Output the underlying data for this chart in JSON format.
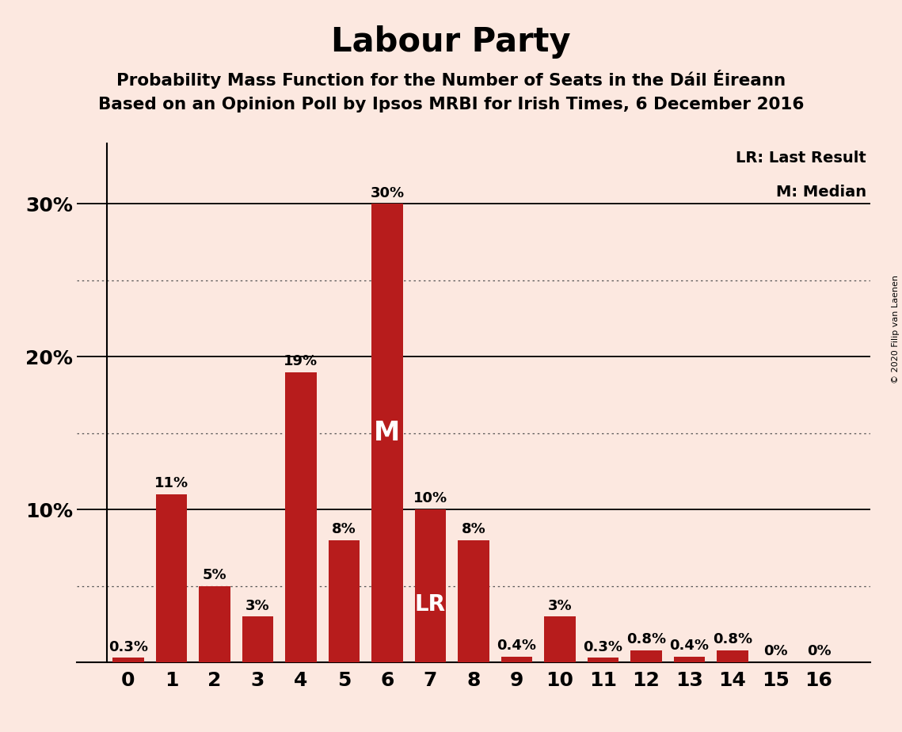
{
  "title": "Labour Party",
  "subtitle1": "Probability Mass Function for the Number of Seats in the Dáil Éireann",
  "subtitle2": "Based on an Opinion Poll by Ipsos MRBI for Irish Times, 6 December 2016",
  "copyright": "© 2020 Filip van Laenen",
  "categories": [
    0,
    1,
    2,
    3,
    4,
    5,
    6,
    7,
    8,
    9,
    10,
    11,
    12,
    13,
    14,
    15,
    16
  ],
  "values": [
    0.3,
    11,
    5,
    3,
    19,
    8,
    30,
    10,
    8,
    0.4,
    3,
    0.3,
    0.8,
    0.4,
    0.8,
    0,
    0
  ],
  "labels": [
    "0.3%",
    "11%",
    "5%",
    "3%",
    "19%",
    "8%",
    "30%",
    "10%",
    "8%",
    "0.4%",
    "3%",
    "0.3%",
    "0.8%",
    "0.4%",
    "0.8%",
    "0%",
    "0%"
  ],
  "bar_color": "#b71c1c",
  "background_color": "#fce8e0",
  "ylim": [
    0,
    34
  ],
  "solid_yticks": [
    10,
    20,
    30
  ],
  "dotted_yticks": [
    5,
    15,
    25
  ],
  "median_bar": 6,
  "lr_bar": 7,
  "legend_lr": "LR: Last Result",
  "legend_m": "M: Median",
  "title_fontsize": 30,
  "subtitle_fontsize": 15.5,
  "label_fontsize": 13,
  "tick_fontsize": 18,
  "annotation_fontsize_m": 24,
  "annotation_fontsize_lr": 20,
  "copyright_fontsize": 8,
  "legend_fontsize": 14
}
